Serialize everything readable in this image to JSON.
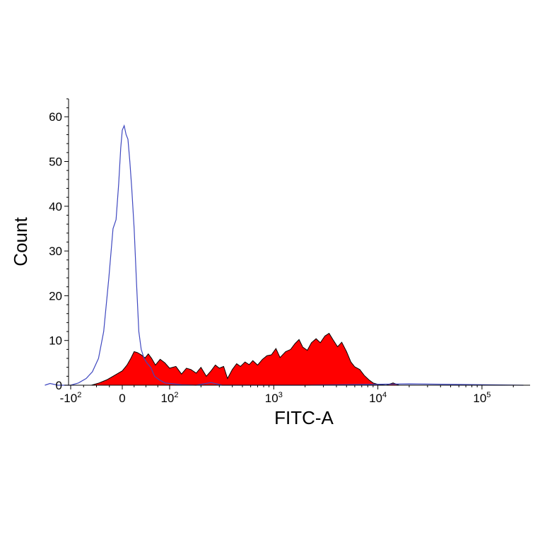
{
  "chart_data": {
    "type": "area",
    "title": "",
    "xlabel": "FITC-A",
    "ylabel": "Count",
    "x_scale": "biexponential",
    "xlim": [
      -150,
      250000
    ],
    "ylim": [
      0,
      65
    ],
    "grid": false,
    "legend": "none",
    "y_ticks": [
      {
        "value": 0,
        "label": "0"
      },
      {
        "value": 10,
        "label": "10"
      },
      {
        "value": 20,
        "label": "20"
      },
      {
        "value": 30,
        "label": "30"
      },
      {
        "value": 40,
        "label": "40"
      },
      {
        "value": 50,
        "label": "50"
      },
      {
        "value": 60,
        "label": "60"
      }
    ],
    "x_ticks": [
      {
        "value": -100,
        "base": "-10",
        "exp": "2"
      },
      {
        "value": 0,
        "base": "0",
        "exp": ""
      },
      {
        "value": 100,
        "base": "10",
        "exp": "2"
      },
      {
        "value": 1000,
        "base": "10",
        "exp": "3"
      },
      {
        "value": 10000,
        "base": "10",
        "exp": "4"
      },
      {
        "value": 100000,
        "base": "10",
        "exp": "5"
      }
    ],
    "series": [
      {
        "style": "filled",
        "color": "#ff0000",
        "outline": "#000000",
        "points": [
          [
            -60,
            0
          ],
          [
            -45,
            0.5
          ],
          [
            -30,
            1.2
          ],
          [
            -15,
            2.2
          ],
          [
            0,
            3.2
          ],
          [
            10,
            4.5
          ],
          [
            18,
            6
          ],
          [
            25,
            7.5
          ],
          [
            32,
            7.3
          ],
          [
            40,
            6.8
          ],
          [
            48,
            6.1
          ],
          [
            55,
            7
          ],
          [
            62,
            6
          ],
          [
            70,
            4.5
          ],
          [
            80,
            5.8
          ],
          [
            90,
            5
          ],
          [
            100,
            3.8
          ],
          [
            115,
            4.2
          ],
          [
            130,
            2.5
          ],
          [
            145,
            3.8
          ],
          [
            160,
            3.5
          ],
          [
            180,
            2.7
          ],
          [
            200,
            4
          ],
          [
            225,
            2
          ],
          [
            250,
            3.2
          ],
          [
            275,
            4.5
          ],
          [
            300,
            3.8
          ],
          [
            330,
            4.2
          ],
          [
            360,
            1.5
          ],
          [
            400,
            3.5
          ],
          [
            440,
            4.8
          ],
          [
            480,
            4.2
          ],
          [
            530,
            5.2
          ],
          [
            580,
            4.6
          ],
          [
            630,
            5.5
          ],
          [
            700,
            4.5
          ],
          [
            780,
            5.8
          ],
          [
            860,
            6.6
          ],
          [
            950,
            6.8
          ],
          [
            1050,
            8.2
          ],
          [
            1150,
            6.2
          ],
          [
            1300,
            7.5
          ],
          [
            1450,
            8
          ],
          [
            1600,
            9.3
          ],
          [
            1750,
            10.2
          ],
          [
            1900,
            8.5
          ],
          [
            2100,
            7.8
          ],
          [
            2300,
            9.5
          ],
          [
            2550,
            10.4
          ],
          [
            2800,
            9.5
          ],
          [
            3100,
            11
          ],
          [
            3400,
            11.6
          ],
          [
            3700,
            10.2
          ],
          [
            4100,
            8.6
          ],
          [
            4500,
            9.6
          ],
          [
            5000,
            7.5
          ],
          [
            5500,
            5.2
          ],
          [
            6000,
            4.1
          ],
          [
            6700,
            3.5
          ],
          [
            7400,
            2.2
          ],
          [
            8200,
            1.2
          ],
          [
            9000,
            0.5
          ],
          [
            10000,
            0.2
          ],
          [
            12000,
            0
          ],
          [
            14000,
            0.5
          ],
          [
            16000,
            0
          ],
          [
            20000,
            0
          ]
        ]
      },
      {
        "style": "line",
        "color": "#3f48c0",
        "points": [
          [
            -150,
            0
          ],
          [
            -140,
            0.4
          ],
          [
            -125,
            0
          ],
          [
            -100,
            0
          ],
          [
            -85,
            0.5
          ],
          [
            -70,
            1.5
          ],
          [
            -58,
            3
          ],
          [
            -46,
            6
          ],
          [
            -36,
            12
          ],
          [
            -26,
            24
          ],
          [
            -18,
            35
          ],
          [
            -12,
            37
          ],
          [
            -7,
            45
          ],
          [
            -3,
            53
          ],
          [
            0,
            57
          ],
          [
            4,
            58
          ],
          [
            8,
            56
          ],
          [
            12,
            55
          ],
          [
            16,
            50
          ],
          [
            20,
            44
          ],
          [
            25,
            35
          ],
          [
            30,
            23
          ],
          [
            35,
            12
          ],
          [
            40,
            8
          ],
          [
            46,
            6
          ],
          [
            52,
            5
          ],
          [
            60,
            4
          ],
          [
            68,
            2
          ],
          [
            78,
            1.2
          ],
          [
            90,
            0.5
          ],
          [
            110,
            0.3
          ],
          [
            130,
            0.1
          ],
          [
            180,
            0
          ],
          [
            250,
            0.6
          ],
          [
            320,
            0
          ],
          [
            500,
            0
          ],
          [
            2000,
            0
          ],
          [
            20000,
            0.3
          ],
          [
            250000,
            0
          ]
        ]
      }
    ]
  }
}
